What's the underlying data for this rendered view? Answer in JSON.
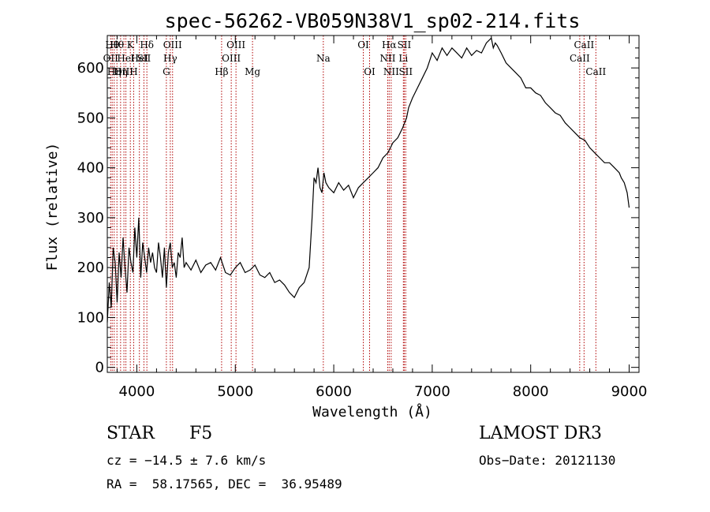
{
  "chart_data": {
    "type": "line",
    "title": "spec-56262-VB059N38V1_sp02-214.fits",
    "xlabel": "Wavelength (Å)",
    "ylabel": "Flux (relative)",
    "xlim": [
      3700,
      9100
    ],
    "ylim": [
      -10,
      665
    ],
    "xticks": [
      4000,
      5000,
      6000,
      7000,
      8000,
      9000
    ],
    "yticks": [
      0,
      100,
      200,
      300,
      400,
      500,
      600
    ],
    "x": [
      3700,
      3720,
      3740,
      3760,
      3780,
      3800,
      3820,
      3840,
      3860,
      3880,
      3900,
      3920,
      3940,
      3960,
      3980,
      4000,
      4020,
      4040,
      4060,
      4080,
      4100,
      4120,
      4140,
      4160,
      4180,
      4200,
      4220,
      4240,
      4260,
      4280,
      4300,
      4320,
      4340,
      4360,
      4380,
      4400,
      4420,
      4440,
      4460,
      4480,
      4500,
      4550,
      4600,
      4650,
      4700,
      4750,
      4800,
      4850,
      4900,
      4950,
      5000,
      5050,
      5100,
      5150,
      5200,
      5250,
      5300,
      5350,
      5400,
      5450,
      5500,
      5550,
      5600,
      5650,
      5700,
      5750,
      5780,
      5800,
      5820,
      5840,
      5860,
      5880,
      5900,
      5920,
      5950,
      6000,
      6050,
      6100,
      6150,
      6200,
      6250,
      6300,
      6350,
      6400,
      6450,
      6500,
      6550,
      6600,
      6650,
      6700,
      6720,
      6740,
      6760,
      6800,
      6850,
      6900,
      6950,
      7000,
      7050,
      7100,
      7150,
      7200,
      7250,
      7300,
      7350,
      7400,
      7450,
      7500,
      7550,
      7600,
      7620,
      7640,
      7660,
      7700,
      7750,
      7800,
      7850,
      7900,
      7950,
      8000,
      8050,
      8100,
      8150,
      8200,
      8250,
      8300,
      8350,
      8400,
      8450,
      8500,
      8550,
      8600,
      8650,
      8700,
      8750,
      8800,
      8850,
      8900,
      8920,
      8950,
      8980,
      9000
    ],
    "y": [
      90,
      170,
      120,
      240,
      210,
      130,
      230,
      180,
      260,
      200,
      150,
      240,
      210,
      190,
      280,
      220,
      300,
      180,
      250,
      220,
      190,
      240,
      210,
      230,
      200,
      190,
      250,
      220,
      180,
      240,
      160,
      230,
      250,
      200,
      210,
      180,
      230,
      220,
      260,
      200,
      210,
      195,
      215,
      190,
      205,
      210,
      195,
      220,
      190,
      185,
      200,
      210,
      190,
      195,
      205,
      185,
      180,
      190,
      170,
      175,
      165,
      150,
      140,
      160,
      170,
      200,
      300,
      380,
      370,
      400,
      360,
      350,
      390,
      370,
      360,
      350,
      370,
      355,
      365,
      340,
      360,
      370,
      380,
      390,
      400,
      420,
      430,
      450,
      460,
      480,
      490,
      500,
      520,
      540,
      560,
      580,
      600,
      630,
      615,
      640,
      625,
      640,
      630,
      620,
      640,
      625,
      635,
      630,
      650,
      660,
      640,
      650,
      645,
      630,
      610,
      600,
      590,
      580,
      560,
      560,
      550,
      545,
      530,
      520,
      510,
      505,
      490,
      480,
      470,
      460,
      455,
      440,
      430,
      420,
      410,
      410,
      400,
      390,
      380,
      370,
      350,
      320
    ],
    "reference_lines": [
      {
        "x": 3734,
        "label": "OII",
        "row": 2
      },
      {
        "x": 3750,
        "label": "Hθ",
        "row": 1
      },
      {
        "x": 3770,
        "label": "Hη",
        "row": 3
      },
      {
        "x": 3798,
        "label": "Hθ",
        "row": 1
      },
      {
        "x": 3835,
        "label": "Hη",
        "row": 3
      },
      {
        "x": 3869,
        "label": "OIII",
        "row": 3
      },
      {
        "x": 3889,
        "label": "HeI",
        "row": 2
      },
      {
        "x": 3934,
        "label": "K",
        "row": 1
      },
      {
        "x": 3968,
        "label": "H",
        "row": 3
      },
      {
        "x": 4026,
        "label": "HeI",
        "row": 2
      },
      {
        "x": 4072,
        "label": "SII",
        "row": 2
      },
      {
        "x": 4102,
        "label": "Hδ",
        "row": 1
      },
      {
        "x": 4300,
        "label": "G",
        "row": 3
      },
      {
        "x": 4340,
        "label": "Hγ",
        "row": 2
      },
      {
        "x": 4363,
        "label": "OIII",
        "row": 1
      },
      {
        "x": 4861,
        "label": "Hβ",
        "row": 3
      },
      {
        "x": 4959,
        "label": "OIII",
        "row": 2
      },
      {
        "x": 5007,
        "label": "OIII",
        "row": 1
      },
      {
        "x": 5175,
        "label": "Mg",
        "row": 3
      },
      {
        "x": 5894,
        "label": "Na",
        "row": 2
      },
      {
        "x": 6300,
        "label": "OI",
        "row": 1
      },
      {
        "x": 6364,
        "label": "OI",
        "row": 3
      },
      {
        "x": 6548,
        "label": "NII",
        "row": 2
      },
      {
        "x": 6563,
        "label": "Hα",
        "row": 1
      },
      {
        "x": 6583,
        "label": "NII",
        "row": 3
      },
      {
        "x": 6707,
        "label": "Li",
        "row": 2
      },
      {
        "x": 6716,
        "label": "SII",
        "row": 1
      },
      {
        "x": 6731,
        "label": "SII",
        "row": 3
      },
      {
        "x": 8498,
        "label": "CaII",
        "row": 2
      },
      {
        "x": 8542,
        "label": "CaII",
        "row": 1
      },
      {
        "x": 8662,
        "label": "CaII",
        "row": 3
      }
    ]
  },
  "info": {
    "object_class": "STAR",
    "subclass": "F5",
    "survey": "LAMOST DR3",
    "redshift": "cz = −14.5 ± 7.6 km/s",
    "obs_date": "Obs−Date: 20121130",
    "coords": "RA =  58.17565, DEC =  36.95489"
  }
}
